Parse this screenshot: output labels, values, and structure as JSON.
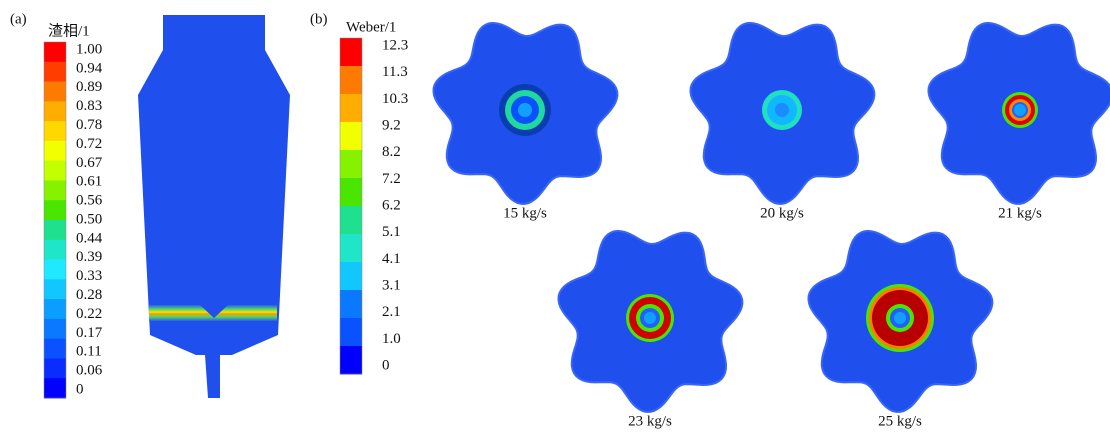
{
  "panel_a": {
    "label": "(a)",
    "colorbar": {
      "title": "渣相/1",
      "labels": [
        "1.00",
        "0.94",
        "0.89",
        "0.83",
        "0.78",
        "0.72",
        "0.67",
        "0.61",
        "0.56",
        "0.50",
        "0.44",
        "0.39",
        "0.33",
        "0.28",
        "0.22",
        "0.17",
        "0.11",
        "0.06",
        "0"
      ]
    }
  },
  "panel_b": {
    "label": "(b)",
    "colorbar": {
      "title": "Weber/1",
      "labels": [
        "12.3",
        "11.3",
        "10.3",
        "9.2",
        "8.2",
        "7.2",
        "6.2",
        "5.1",
        "4.1",
        "3.1",
        "2.1",
        "1.0",
        "0"
      ]
    },
    "cases": [
      {
        "caption": "15 kg/s"
      },
      {
        "caption": "20 kg/s"
      },
      {
        "caption": "21 kg/s"
      },
      {
        "caption": "23 kg/s"
      },
      {
        "caption": "25 kg/s"
      }
    ]
  }
}
